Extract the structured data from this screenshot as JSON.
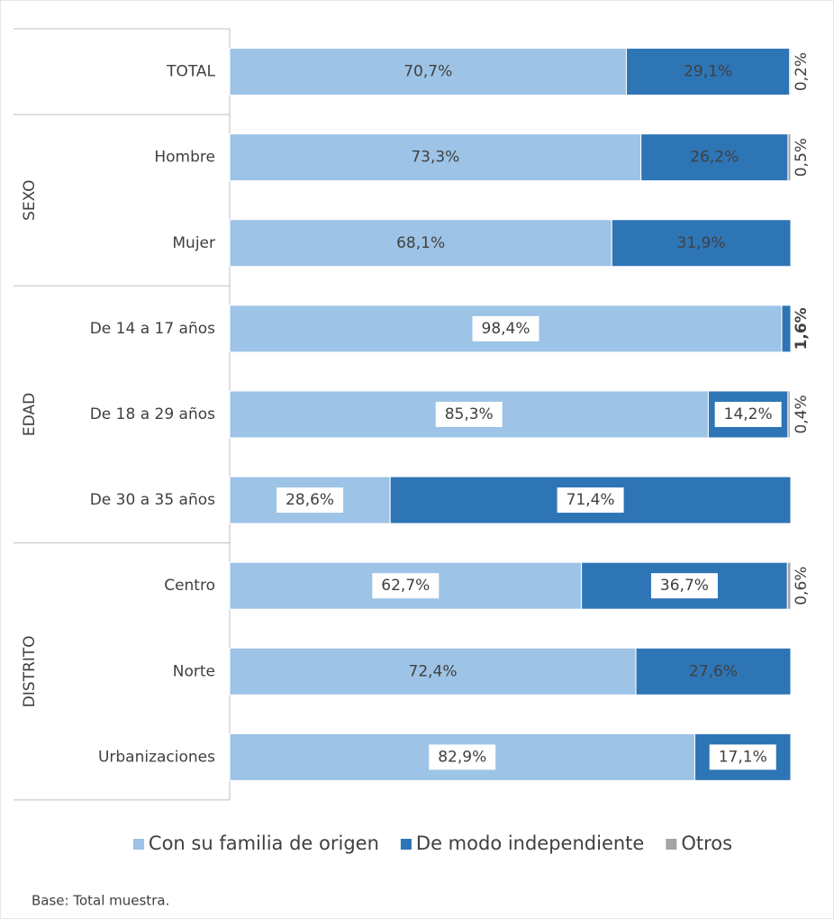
{
  "chart_data": {
    "type": "stacked_barh",
    "categories": [
      "TOTAL",
      "Hombre",
      "Mujer",
      "De 14 a 17 años",
      "De 18 a 29 años",
      "De 30 a 35 años",
      "Centro",
      "Norte",
      "Urbanizaciones"
    ],
    "groups": [
      {
        "name": "SEXO",
        "members": [
          "Hombre",
          "Mujer"
        ]
      },
      {
        "name": "EDAD",
        "members": [
          "De 14 a 17 años",
          "De 18 a 29 años",
          "De 30 a 35 años"
        ]
      },
      {
        "name": "DISTRITO",
        "members": [
          "Centro",
          "Norte",
          "Urbanizaciones"
        ]
      }
    ],
    "xlim": [
      0,
      100
    ],
    "series": [
      {
        "name": "Con su familia de origen",
        "color": "#9dc3e6",
        "label_color": "#404040",
        "values": [
          70.7,
          73.3,
          68.1,
          98.4,
          85.3,
          28.6,
          62.7,
          72.4,
          82.9
        ],
        "value_labels": [
          "70,7%",
          "73,3%",
          "68,1%",
          "98,4%",
          "85,3%",
          "28,6%",
          "62,7%",
          "72,4%",
          "82,9%"
        ],
        "value_label_colors": [
          "#404040",
          "#404040",
          "#404040",
          "#00b050",
          "#00b050",
          "#c00000",
          "#c00000",
          "#404040",
          "#00b050"
        ]
      },
      {
        "name": "De modo independiente",
        "color": "#2e75b6",
        "label_color": "#ffffff",
        "values": [
          29.1,
          26.2,
          31.9,
          1.6,
          14.2,
          71.4,
          36.7,
          27.6,
          17.1
        ],
        "value_labels": [
          "29,1%",
          "26,2%",
          "31,9%",
          "1,6%",
          "14,2%",
          "71,4%",
          "36,7%",
          "27,6%",
          "17,1%"
        ],
        "value_label_colors": [
          "#ffffff",
          "#ffffff",
          "#ffffff",
          "#c00000",
          "#c00000",
          "#00b050",
          "#00b050",
          "#ffffff",
          "#c00000"
        ]
      },
      {
        "name": "Otros",
        "color": "#a5a5a5",
        "label_color": "#404040",
        "values": [
          0.2,
          0.5,
          null,
          null,
          0.4,
          null,
          0.6,
          null,
          null
        ],
        "value_labels": [
          "0,2%",
          "0,5%",
          null,
          null,
          "0,4%",
          null,
          "0,6%",
          null,
          null
        ],
        "value_label_colors": [
          "#404040",
          "#404040",
          null,
          null,
          "#404040",
          null,
          "#404040",
          null,
          null
        ]
      }
    ],
    "legend": "bottom",
    "footnote": "Base: Total muestra."
  }
}
